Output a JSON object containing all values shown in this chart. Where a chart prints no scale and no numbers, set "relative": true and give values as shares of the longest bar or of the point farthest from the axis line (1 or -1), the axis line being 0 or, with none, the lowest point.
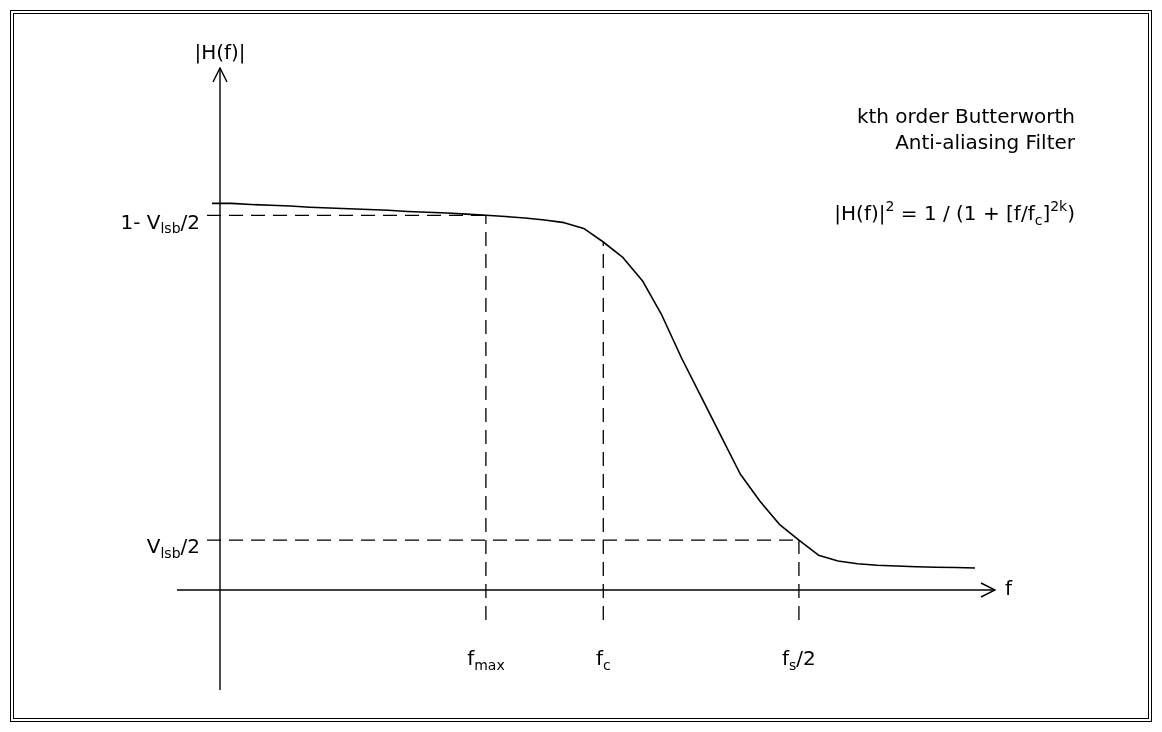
{
  "chart_data": {
    "type": "line",
    "relative": true,
    "xlabel": "f",
    "categories": [
      null,
      null,
      null,
      null,
      null,
      null,
      null,
      null,
      null,
      null,
      null,
      null,
      null,
      null,
      "f$_{max}$",
      null,
      null,
      null,
      null,
      null,
      "f$_{c}$",
      null,
      null,
      null,
      null,
      null,
      null,
      null,
      null,
      null,
      "f$_{s}$/2",
      null,
      null,
      null,
      null,
      null,
      null,
      null,
      null,
      null
    ],
    "series": [
      {
        "color": "#000000",
        "values": [
          1.0,
          1.0,
          0.997,
          0.995,
          0.993,
          0.99,
          0.988,
          0.986,
          0.984,
          0.982,
          0.979,
          0.977,
          0.975,
          0.972,
          0.969,
          0.966,
          0.962,
          0.957,
          0.95,
          0.935,
          0.9,
          0.86,
          0.8,
          0.71,
          0.6,
          0.5,
          0.4,
          0.3,
          0.23,
          0.17,
          0.129,
          0.09,
          0.075,
          0.068,
          0.064,
          0.062,
          0.06,
          0.059,
          0.058,
          0.057
        ]
      }
    ],
    "ref_lines": [
      {
        "axis": "y",
        "value": 0.969,
        "label": "1- V$_{lsb}$/2",
        "line_style": "dashed"
      },
      {
        "axis": "y",
        "value": 0.129,
        "label": "V$_{lsb}$/2",
        "line_style": "dashed"
      },
      {
        "axis": "x",
        "value": "f$_{max}$",
        "line_style": "dashed"
      },
      {
        "axis": "x",
        "value": "f$_{c}$",
        "line_style": "dashed"
      },
      {
        "axis": "x",
        "value": "f$_{s}$/2",
        "line_style": "dashed"
      }
    ],
    "annotations": [
      "|H(f)|",
      "kth order Butterworth Anti-aliasing Filter",
      "|H(f)|$^{2}$ = 1 / (1 + [f/f$_{c}$]$^{2k}$)"
    ],
    "legend": false,
    "marker": "none",
    "line_style": "solid"
  }
}
